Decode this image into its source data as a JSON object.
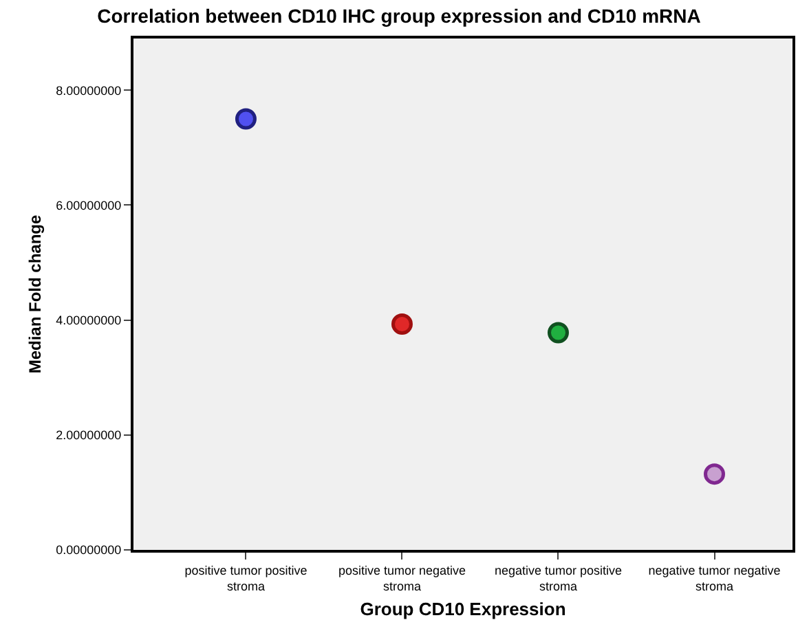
{
  "chart_data": {
    "type": "scatter",
    "title": "Correlation between CD10 IHC group expression and CD10 mRNA",
    "xlabel": "Group CD10 Expression",
    "ylabel": "Median Fold change",
    "categories": [
      "positive tumor positive stroma",
      "positive tumor negative stroma",
      "negative tumor positive stroma",
      "negative tumor negative stroma"
    ],
    "values": [
      7.5,
      3.93,
      3.78,
      1.32
    ],
    "colors": [
      "#5050f0",
      "#e02828",
      "#20b040",
      "#c8a0d0"
    ],
    "ylim": [
      0,
      8.9
    ],
    "yticks": [
      {
        "value": 0,
        "label": "0.00000000"
      },
      {
        "value": 2,
        "label": "2.00000000"
      },
      {
        "value": 4,
        "label": "4.00000000"
      },
      {
        "value": 6,
        "label": "6.00000000"
      },
      {
        "value": 8,
        "label": "8.00000000"
      }
    ],
    "marker": "circle",
    "grid": false
  }
}
